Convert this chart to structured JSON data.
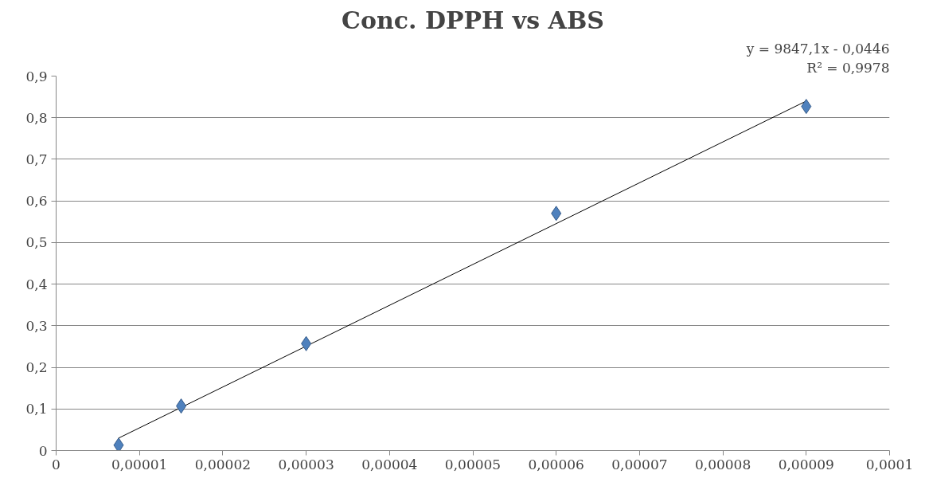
{
  "chart_data": {
    "type": "scatter",
    "title": "Conc. DPPH vs ABS",
    "series": [
      {
        "color": "#4f81bd",
        "marker": "diamond",
        "x": [
          7.5e-06,
          1.5e-05,
          3e-05,
          6e-05,
          9e-05
        ],
        "values": [
          0.013,
          0.107,
          0.257,
          0.57,
          0.827
        ]
      },
      {
        "type": "line",
        "color": "#000000",
        "marker": "none",
        "line_style": "solid",
        "x": [
          7.5e-06,
          9e-05
        ],
        "values": [
          0.03,
          0.84
        ]
      }
    ],
    "annotations": [
      "y = 9847,1x - 0,0446",
      "R² = 0,9978"
    ],
    "xlim": [
      0,
      0.0001
    ],
    "ylim": [
      0,
      0.9
    ],
    "xticks": [
      {
        "value": 0,
        "label": "0"
      },
      {
        "value": 1e-05,
        "label": "0,00001"
      },
      {
        "value": 2e-05,
        "label": "0,00002"
      },
      {
        "value": 3e-05,
        "label": "0,00003"
      },
      {
        "value": 4e-05,
        "label": "0,00004"
      },
      {
        "value": 5e-05,
        "label": "0,00005"
      },
      {
        "value": 6e-05,
        "label": "0,00006"
      },
      {
        "value": 7e-05,
        "label": "0,00007"
      },
      {
        "value": 8e-05,
        "label": "0,00008"
      },
      {
        "value": 9e-05,
        "label": "0,00009"
      },
      {
        "value": 0.0001,
        "label": "0,0001"
      }
    ],
    "yticks": [
      {
        "value": 0,
        "label": "0"
      },
      {
        "value": 0.1,
        "label": "0,1"
      },
      {
        "value": 0.2,
        "label": "0,2"
      },
      {
        "value": 0.3,
        "label": "0,3"
      },
      {
        "value": 0.4,
        "label": "0,4"
      },
      {
        "value": 0.5,
        "label": "0,5"
      },
      {
        "value": 0.6,
        "label": "0,6"
      },
      {
        "value": 0.7,
        "label": "0,7"
      },
      {
        "value": 0.8,
        "label": "0,8"
      },
      {
        "value": 0.9,
        "label": "0,9"
      }
    ],
    "grid": "y"
  }
}
